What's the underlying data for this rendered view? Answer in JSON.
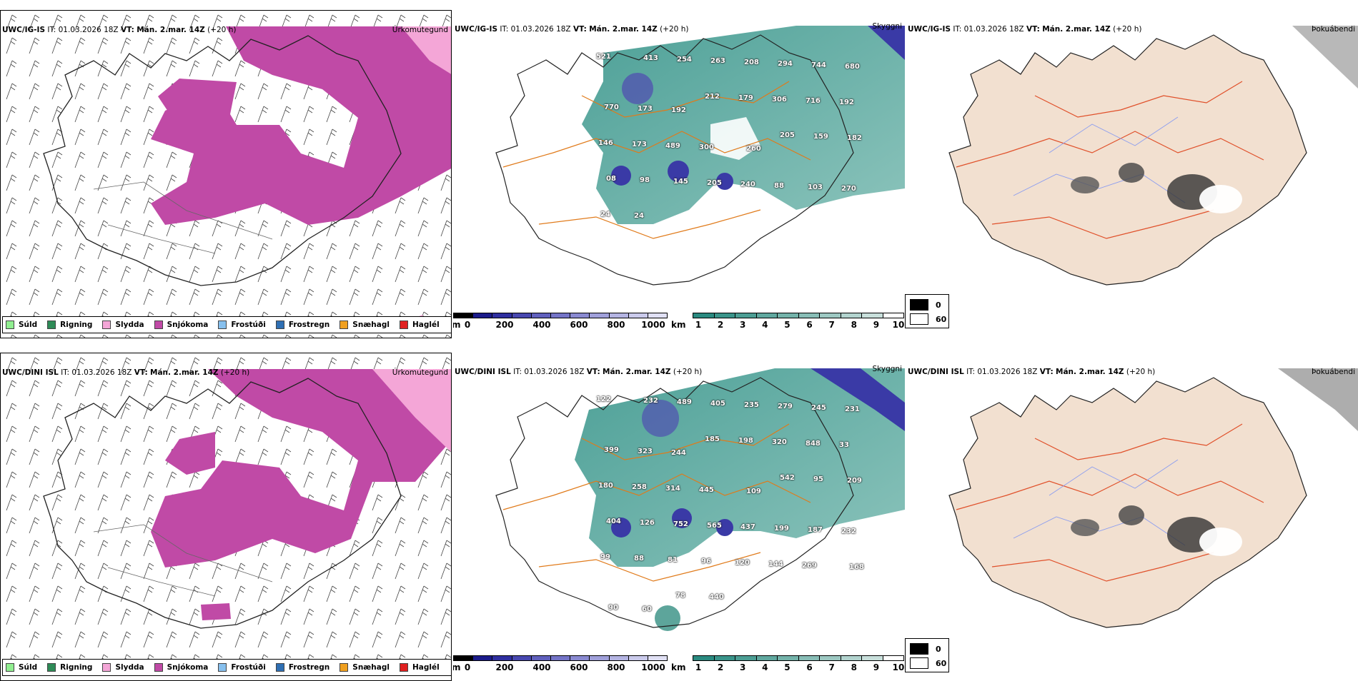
{
  "rows": [
    {
      "model": "UWC/IG-IS",
      "it_label": "IT:",
      "it_value": "01.03.2026 18Z",
      "vt_label": "VT:",
      "vt_value": "Mán. 2.mar. 14Z",
      "lead": "(+20 h)",
      "precip_corner": "Úrkomutegund",
      "cloud_corner": "Skyggni",
      "fog_corner": "Þokuábendi",
      "cloud_numbers": [
        "521",
        "413",
        "254",
        "263",
        "208",
        "294",
        "744",
        "680",
        "770",
        "173",
        "192",
        "212",
        "179",
        "306",
        "716",
        "192",
        "146",
        "173",
        "489",
        "300",
        "260",
        "205",
        "159",
        "182",
        "08",
        "98",
        "145",
        "205",
        "240",
        "88",
        "103",
        "270",
        "24",
        "24"
      ]
    },
    {
      "model": "UWC/DINI ISL",
      "it_label": "IT:",
      "it_value": "01.03.2026 18Z",
      "vt_label": "VT:",
      "vt_value": "Mán. 2.mar. 14Z",
      "lead": "(+20 h)",
      "precip_corner": "Úrkomutegund",
      "cloud_corner": "Skyggni",
      "fog_corner": "Þokuábendi",
      "cloud_numbers": [
        "122",
        "232",
        "489",
        "405",
        "235",
        "279",
        "245",
        "231",
        "399",
        "323",
        "244",
        "185",
        "198",
        "320",
        "848",
        "33",
        "180",
        "258",
        "314",
        "445",
        "109",
        "542",
        "95",
        "209",
        "404",
        "126",
        "752",
        "565",
        "437",
        "199",
        "187",
        "232",
        "99",
        "88",
        "81",
        "96",
        "120",
        "144",
        "269",
        "168",
        "90",
        "60",
        "78",
        "440"
      ]
    }
  ],
  "precip_legend": [
    {
      "label": "Súld",
      "color": "#90ee90"
    },
    {
      "label": "Rigning",
      "color": "#2e8b57"
    },
    {
      "label": "Slydda",
      "color": "#f4a6d7"
    },
    {
      "label": "Snjókoma",
      "color": "#c04aa6"
    },
    {
      "label": "Frostúði",
      "color": "#87c0ee"
    },
    {
      "label": "Frostregn",
      "color": "#2f6fb3"
    },
    {
      "label": "Snæhagl",
      "color": "#f0a020"
    },
    {
      "label": "Haglél",
      "color": "#e02020"
    }
  ],
  "height_bar": {
    "unit": "m",
    "ticks": [
      "0",
      "200",
      "400",
      "600",
      "800",
      "1000"
    ],
    "colors": [
      "#000000",
      "#1b1b8a",
      "#2f2fa0",
      "#4848b0",
      "#6060bd",
      "#7474c7",
      "#8a8ad1",
      "#a0a0da",
      "#b4b4e2",
      "#cacaeb",
      "#e0e0f4"
    ]
  },
  "vis_bar": {
    "unit": "km",
    "ticks": [
      "1",
      "2",
      "3",
      "4",
      "5",
      "6",
      "7",
      "8",
      "9",
      "10"
    ],
    "colors": [
      "#2a8a80",
      "#3a948a",
      "#4c9e94",
      "#60a89f",
      "#74b3aa",
      "#88bdb6",
      "#9dc8c2",
      "#b2d3ce",
      "#c8dfdb",
      "#ffffff"
    ]
  },
  "fog_legend": [
    {
      "label": "0",
      "color": "#000000"
    },
    {
      "label": "60",
      "color": "#ffffff"
    }
  ]
}
